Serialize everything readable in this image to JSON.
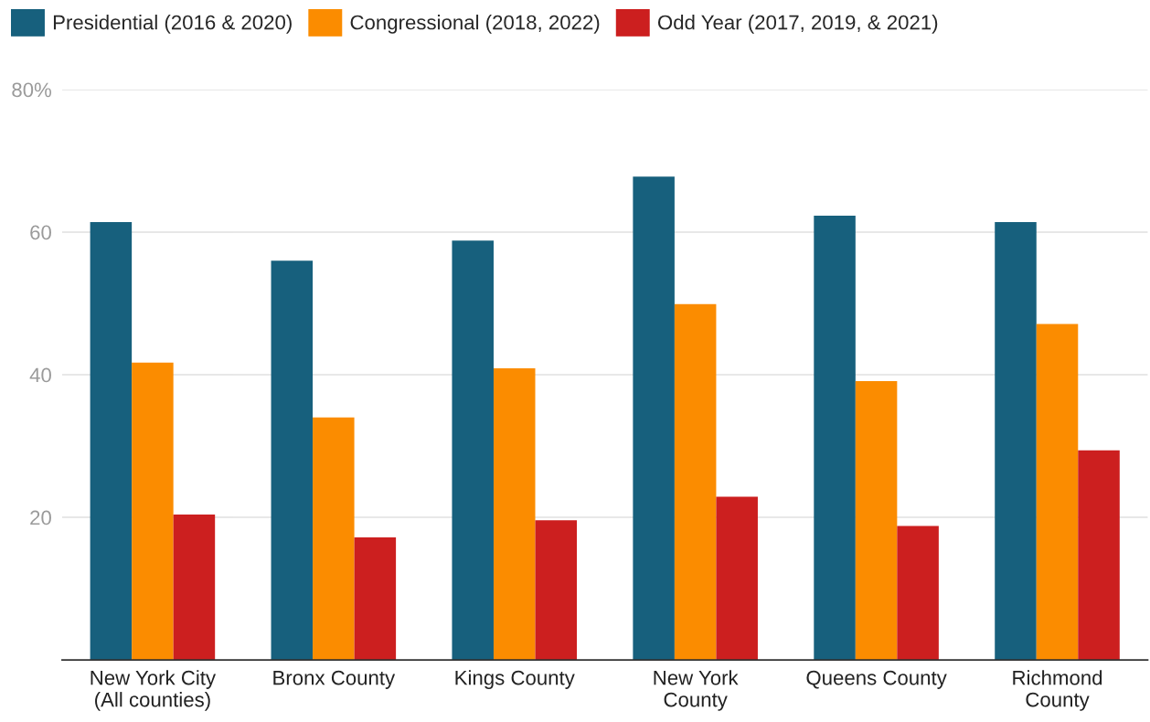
{
  "chart_data": {
    "type": "bar",
    "categories": [
      "New York City\n(All counties)",
      "Bronx County",
      "Kings County",
      "New York\nCounty",
      "Queens County",
      "Richmond\nCounty"
    ],
    "series": [
      {
        "name": "Presidential (2016 & 2020)",
        "color": "#17607d",
        "values": [
          61.4,
          56.0,
          58.8,
          67.8,
          62.3,
          61.4
        ]
      },
      {
        "name": "Congressional (2018, 2022)",
        "color": "#fb8c00",
        "values": [
          41.7,
          34.0,
          40.9,
          49.9,
          39.1,
          47.1
        ]
      },
      {
        "name": "Odd Year (2017, 2019, & 2021)",
        "color": "#cc1f1f",
        "values": [
          20.4,
          17.2,
          19.6,
          22.9,
          18.8,
          29.4
        ]
      }
    ],
    "ylim": [
      0,
      80
    ],
    "yticks": [
      20,
      40,
      60,
      {
        "value": 80,
        "label": "80%"
      }
    ],
    "grid": "y",
    "legend": "top left"
  }
}
